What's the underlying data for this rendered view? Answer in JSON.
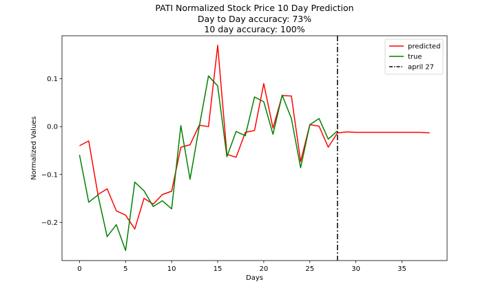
{
  "chart_data": {
    "type": "line",
    "title": "PATI Normalized Stock Price 10 Day Prediction",
    "subtitle_lines": [
      "Day to Day accuracy: 73%",
      "10 day accuracy: 100%"
    ],
    "xlabel": "Days",
    "ylabel": "Normalized Values",
    "xlim": [
      -1.9,
      39.9
    ],
    "ylim": [
      -0.28,
      0.19
    ],
    "xticks": [
      0,
      5,
      10,
      15,
      20,
      25,
      30,
      35
    ],
    "yticks": [
      -0.2,
      -0.1,
      0.0,
      0.1
    ],
    "ytick_labels": [
      "−0.2",
      "−0.1",
      "0.0",
      "0.1"
    ],
    "grid": false,
    "legend_position": "top-right",
    "series": [
      {
        "name": "predicted",
        "color": "#ff0000",
        "x": [
          0,
          1,
          2,
          3,
          4,
          5,
          6,
          7,
          8,
          9,
          10,
          11,
          12,
          13,
          14,
          15,
          16,
          17,
          18,
          19,
          20,
          21,
          22,
          23,
          24,
          25,
          26,
          27,
          28,
          29,
          30,
          31,
          32,
          33,
          34,
          35,
          36,
          37,
          38
        ],
        "values": [
          -0.04,
          -0.03,
          -0.142,
          -0.13,
          -0.176,
          -0.185,
          -0.214,
          -0.15,
          -0.162,
          -0.142,
          -0.135,
          -0.043,
          -0.038,
          0.003,
          0.0,
          0.17,
          -0.058,
          -0.064,
          -0.012,
          -0.008,
          0.09,
          -0.003,
          0.065,
          0.064,
          -0.073,
          0.004,
          0.001,
          -0.043,
          -0.013,
          -0.011,
          -0.012,
          -0.012,
          -0.012,
          -0.012,
          -0.012,
          -0.012,
          -0.012,
          -0.012,
          -0.013
        ]
      },
      {
        "name": "true",
        "color": "#008000",
        "x": [
          0,
          1,
          2,
          3,
          4,
          5,
          6,
          7,
          8,
          9,
          10,
          11,
          12,
          13,
          14,
          15,
          16,
          17,
          18,
          19,
          20,
          21,
          22,
          23,
          24,
          25,
          26,
          27,
          28
        ],
        "values": [
          -0.059,
          -0.158,
          -0.143,
          -0.23,
          -0.205,
          -0.259,
          -0.116,
          -0.134,
          -0.167,
          -0.155,
          -0.172,
          0.002,
          -0.11,
          0.0,
          0.106,
          0.085,
          -0.063,
          -0.01,
          -0.019,
          0.062,
          0.052,
          -0.016,
          0.066,
          0.017,
          -0.086,
          0.004,
          0.017,
          -0.026,
          -0.009
        ]
      }
    ],
    "vline": {
      "name": "april 27",
      "x": 28,
      "color": "#000000",
      "style": "dashdot"
    }
  }
}
